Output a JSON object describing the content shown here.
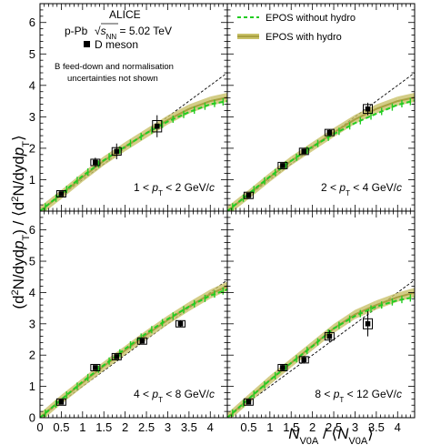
{
  "figure": {
    "ylabel_parts": [
      "(d",
      "2",
      "N/dyd",
      "p",
      "T",
      ") / ⟨d",
      "2",
      "N/dyd",
      "p",
      "T",
      "⟩"
    ],
    "xlabel_parts": [
      "N",
      "V0A",
      " / ⟨",
      "N",
      "V0A",
      "⟩"
    ],
    "x_ticks": [
      "0",
      "0.5",
      "1",
      "1.5",
      "2",
      "2.5",
      "3",
      "3.5",
      "4"
    ],
    "y_ticks": [
      "0",
      "1",
      "2",
      "3",
      "4",
      "5",
      "6"
    ],
    "annotations": {
      "experiment": "ALICE",
      "system": "p-Pb",
      "energy_prefix": "√",
      "energy_s": "s",
      "energy_sub": "NN",
      "energy_suffix": " = 5.02 TeV",
      "particle": "D meson",
      "note_line1": "B feed-down and normalisation",
      "note_line2": "uncertainties not shown"
    },
    "legend": {
      "without_hydro": "EPOS without hydro",
      "with_hydro": "EPOS with hydro"
    },
    "colors": {
      "without_hydro": "#22cc22",
      "with_hydro": "#a8a040",
      "with_hydro_band": "#c8c068",
      "diagonal": "#000000",
      "data": "#000000"
    }
  },
  "chart_data": [
    {
      "type": "scatter",
      "panel": "top-left",
      "pt_label": [
        "1 < ",
        "p",
        "T",
        " < 2 GeV/",
        "c"
      ],
      "xlim": [
        0,
        4.4
      ],
      "ylim": [
        0,
        6.6
      ],
      "series": [
        {
          "name": "D meson",
          "x": [
            0.5,
            1.3,
            1.8,
            2.75
          ],
          "y": [
            0.55,
            1.55,
            1.9,
            2.7
          ],
          "yerr": [
            0.05,
            0.15,
            0.25,
            0.35
          ],
          "syst": [
            0.05,
            0.1,
            0.12,
            0.18
          ]
        },
        {
          "name": "EPOS without hydro",
          "x": [
            0,
            0.5,
            1,
            1.5,
            2,
            2.5,
            3,
            3.5,
            4,
            4.4
          ],
          "y": [
            0,
            0.55,
            1.12,
            1.62,
            2.05,
            2.48,
            2.85,
            3.15,
            3.4,
            3.5
          ]
        },
        {
          "name": "EPOS with hydro",
          "x": [
            0,
            0.5,
            1,
            1.5,
            2,
            2.5,
            3,
            3.5,
            4,
            4.4
          ],
          "y": [
            0,
            0.53,
            1.08,
            1.6,
            2.05,
            2.48,
            2.9,
            3.25,
            3.5,
            3.62
          ]
        },
        {
          "name": "",
          "x": [
            0,
            4.4
          ],
          "y": [
            0,
            4.4
          ]
        }
      ]
    },
    {
      "type": "scatter",
      "panel": "top-right",
      "pt_label": [
        "2 < ",
        "p",
        "T",
        " < 4 GeV/",
        "c"
      ],
      "xlim": [
        0,
        4.4
      ],
      "ylim": [
        0,
        6.6
      ],
      "series": [
        {
          "name": "D meson",
          "x": [
            0.5,
            1.3,
            1.8,
            2.4,
            3.3
          ],
          "y": [
            0.5,
            1.45,
            1.9,
            2.5,
            3.25
          ],
          "yerr": [
            0.03,
            0.05,
            0.07,
            0.1,
            0.2
          ],
          "syst": [
            0.04,
            0.06,
            0.08,
            0.1,
            0.14
          ]
        },
        {
          "name": "EPOS without hydro",
          "x": [
            0,
            0.5,
            1,
            1.5,
            2,
            2.5,
            3,
            3.5,
            4,
            4.4
          ],
          "y": [
            0,
            0.55,
            1.1,
            1.6,
            2.05,
            2.45,
            2.8,
            3.1,
            3.38,
            3.52
          ]
        },
        {
          "name": "EPOS with hydro",
          "x": [
            0,
            0.5,
            1,
            1.5,
            2,
            2.5,
            3,
            3.5,
            4,
            4.4
          ],
          "y": [
            0,
            0.53,
            1.08,
            1.6,
            2.05,
            2.5,
            2.92,
            3.25,
            3.5,
            3.62
          ]
        },
        {
          "name": "",
          "x": [
            0,
            4.4
          ],
          "y": [
            0,
            4.4
          ]
        }
      ]
    },
    {
      "type": "scatter",
      "panel": "bottom-left",
      "pt_label": [
        "4 < ",
        "p",
        "T",
        " < 8 GeV/",
        "c"
      ],
      "xlim": [
        0,
        4.4
      ],
      "ylim": [
        0,
        6.6
      ],
      "series": [
        {
          "name": "D meson",
          "x": [
            0.5,
            1.3,
            1.8,
            2.4,
            3.3
          ],
          "y": [
            0.5,
            1.6,
            1.95,
            2.45,
            3.0
          ],
          "yerr": [
            0.03,
            0.05,
            0.07,
            0.08,
            0.1
          ],
          "syst": [
            0.04,
            0.06,
            0.08,
            0.08,
            0.1
          ]
        },
        {
          "name": "EPOS without hydro",
          "x": [
            0,
            0.5,
            1,
            1.5,
            2,
            2.5,
            3,
            3.5,
            4,
            4.4
          ],
          "y": [
            0,
            0.58,
            1.15,
            1.68,
            2.2,
            2.7,
            3.15,
            3.55,
            3.9,
            4.1
          ]
        },
        {
          "name": "EPOS with hydro",
          "x": [
            0,
            0.5,
            1,
            1.5,
            2,
            2.5,
            3,
            3.5,
            4,
            4.4
          ],
          "y": [
            0,
            0.58,
            1.12,
            1.65,
            2.15,
            2.65,
            3.12,
            3.55,
            3.95,
            4.2
          ]
        },
        {
          "name": "",
          "x": [
            0,
            4.4
          ],
          "y": [
            0,
            4.4
          ]
        }
      ]
    },
    {
      "type": "scatter",
      "panel": "bottom-right",
      "pt_label": [
        "8 < ",
        "p",
        "T",
        " < 12 GeV/",
        "c"
      ],
      "xlim": [
        0,
        4.4
      ],
      "ylim": [
        0,
        6.6
      ],
      "series": [
        {
          "name": "D meson",
          "x": [
            0.5,
            1.3,
            1.8,
            2.4,
            3.3
          ],
          "y": [
            0.5,
            1.6,
            1.85,
            2.6,
            3.0
          ],
          "yerr": [
            0.05,
            0.1,
            0.12,
            0.2,
            0.4
          ],
          "syst": [
            0.04,
            0.06,
            0.08,
            0.12,
            0.16
          ]
        },
        {
          "name": "EPOS without hydro",
          "x": [
            0,
            0.5,
            1,
            1.5,
            2,
            2.5,
            3,
            3.5,
            4,
            4.4
          ],
          "y": [
            0,
            0.6,
            1.2,
            1.75,
            2.28,
            2.85,
            3.25,
            3.55,
            3.75,
            3.85
          ]
        },
        {
          "name": "EPOS with hydro",
          "x": [
            0,
            0.5,
            1,
            1.5,
            2,
            2.5,
            3,
            3.5,
            4,
            4.4
          ],
          "y": [
            0,
            0.6,
            1.2,
            1.75,
            2.3,
            2.85,
            3.3,
            3.6,
            3.85,
            4.0
          ]
        },
        {
          "name": "",
          "x": [
            0,
            4.4
          ],
          "y": [
            0,
            4.4
          ]
        }
      ]
    }
  ]
}
